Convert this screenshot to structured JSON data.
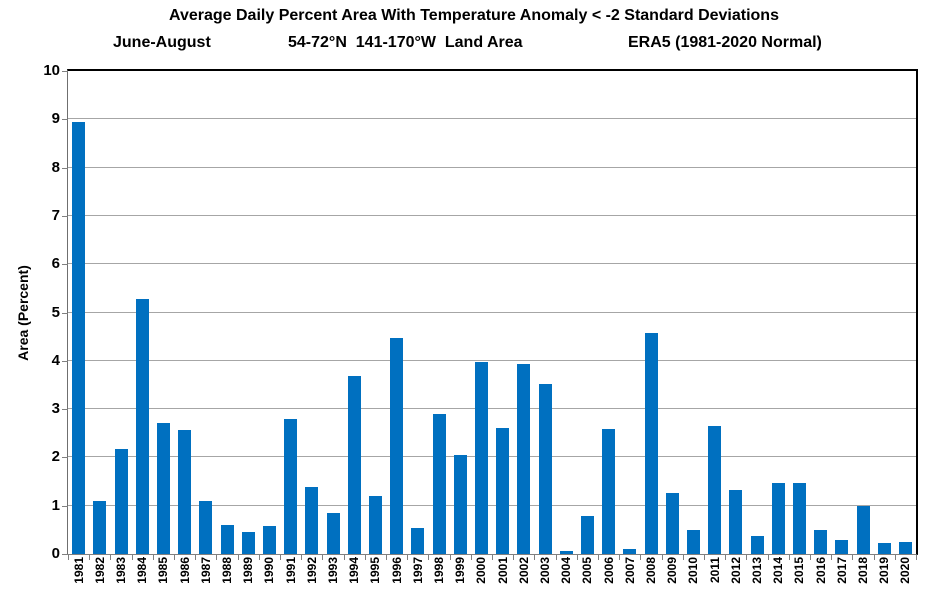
{
  "chart": {
    "title": "Average Daily Percent Area With Temperature Anomaly < -2 Standard Deviations",
    "subtitle": {
      "left": "June-August",
      "center": "54-72°N  141-170°W  Land Area",
      "right": "ERA5 (1981-2020 Normal)"
    },
    "y_axis_label": "Area (Percent)"
  },
  "chart_data": {
    "type": "bar",
    "title": "Average Daily Percent Area With Temperature Anomaly < -2 Standard Deviations",
    "subtitle": "June-August    54-72°N 141-170°W Land Area    ERA5 (1981-2020 Normal)",
    "xlabel": "",
    "ylabel": "Area (Percent)",
    "ylim": [
      0,
      10
    ],
    "y_ticks": [
      0,
      1,
      2,
      3,
      4,
      5,
      6,
      7,
      8,
      9,
      10
    ],
    "grid": true,
    "legend_position": "none",
    "bar_color": "#0070C0",
    "categories": [
      "1981",
      "1982",
      "1983",
      "1984",
      "1985",
      "1986",
      "1987",
      "1988",
      "1989",
      "1990",
      "1991",
      "1992",
      "1993",
      "1994",
      "1995",
      "1996",
      "1997",
      "1998",
      "1999",
      "2000",
      "2001",
      "2002",
      "2003",
      "2004",
      "2005",
      "2006",
      "2007",
      "2008",
      "2009",
      "2010",
      "2011",
      "2012",
      "2013",
      "2014",
      "2015",
      "2016",
      "2017",
      "2018",
      "2019",
      "2020"
    ],
    "values": [
      8.95,
      1.1,
      2.18,
      5.27,
      2.72,
      2.56,
      1.1,
      0.6,
      0.46,
      0.57,
      2.8,
      1.38,
      0.85,
      3.69,
      1.2,
      4.48,
      0.53,
      2.9,
      2.04,
      3.97,
      2.6,
      3.94,
      3.51,
      0.07,
      0.78,
      2.59,
      0.1,
      4.57,
      1.26,
      0.5,
      2.66,
      1.33,
      0.38,
      1.47,
      1.47,
      0.49,
      0.3,
      0.99,
      0.23,
      0.24
    ]
  },
  "colors": {
    "bar": "#0070C0",
    "gridline": "#A6A6A6",
    "axis": "#808080",
    "plot_border": "#000000",
    "background": "#FFFFFF",
    "text": "#000000"
  }
}
